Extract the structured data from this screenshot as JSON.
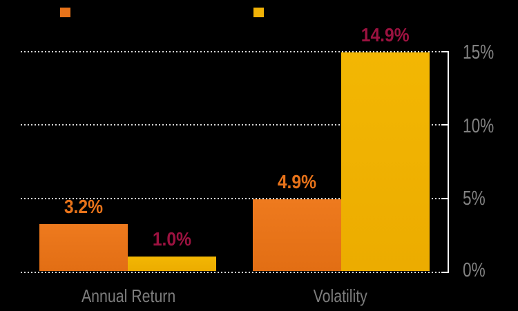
{
  "chart_data": {
    "type": "bar",
    "categories": [
      "Annual Return",
      "Volatility"
    ],
    "series": [
      {
        "id": "series-1",
        "color": "#e8731a",
        "values": [
          3.2,
          4.9
        ],
        "value_labels": [
          "3.2%",
          "4.9%"
        ],
        "value_label_color": "#e8731a"
      },
      {
        "id": "series-2",
        "color": "#f0b207",
        "values": [
          1.0,
          14.9
        ],
        "value_labels": [
          "1.0%",
          "14.9%"
        ],
        "value_label_color": "#9c1240"
      }
    ],
    "ylim": [
      0,
      15
    ],
    "yticks": [
      0,
      5,
      10,
      15
    ],
    "ytick_labels": [
      "0%",
      "5%",
      "10%",
      "15%"
    ],
    "y_axis_side": "right",
    "grid": "horizontal-dotted",
    "legend_position": "top",
    "colors": {
      "background": "#000000",
      "axis": "#ffffff",
      "gridline": "#d9d9d9",
      "ytick_label": "#828282",
      "category_label": "#7d7d7d"
    }
  }
}
